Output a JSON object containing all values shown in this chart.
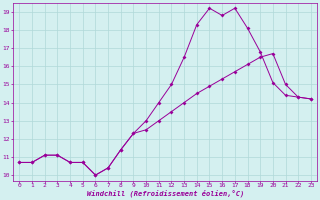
{
  "xlabel": "Windchill (Refroidissement éolien,°C)",
  "bg_color": "#d4f0f0",
  "grid_color": "#b0d8d8",
  "line_color": "#990099",
  "xlim": [
    -0.5,
    23.5
  ],
  "ylim": [
    9.7,
    19.5
  ],
  "yticks": [
    10,
    11,
    12,
    13,
    14,
    15,
    16,
    17,
    18,
    19
  ],
  "xticks": [
    0,
    1,
    2,
    3,
    4,
    5,
    6,
    7,
    8,
    9,
    10,
    11,
    12,
    13,
    14,
    15,
    16,
    17,
    18,
    19,
    20,
    21,
    22,
    23
  ],
  "line1_x": [
    0,
    1,
    2,
    3,
    4,
    5,
    6,
    7,
    8,
    9,
    10,
    11,
    12,
    13,
    14,
    15,
    16,
    17,
    18,
    19,
    20,
    21,
    22,
    23
  ],
  "line1_y": [
    10.7,
    10.7,
    11.1,
    11.1,
    10.7,
    10.7,
    10.0,
    10.4,
    11.4,
    12.3,
    12.5,
    13.0,
    13.5,
    14.0,
    14.5,
    14.9,
    15.3,
    15.7,
    16.1,
    16.5,
    16.7,
    15.0,
    14.3,
    14.2
  ],
  "line2_x": [
    0,
    1,
    2,
    3,
    4,
    5,
    6,
    7,
    8,
    9,
    10,
    11,
    12,
    13,
    14,
    15,
    16,
    17,
    18,
    19,
    20,
    21,
    22,
    23
  ],
  "line2_y": [
    10.7,
    10.7,
    11.1,
    11.1,
    10.7,
    10.7,
    10.0,
    10.4,
    11.4,
    12.3,
    13.0,
    14.0,
    15.0,
    16.5,
    18.3,
    19.2,
    18.8,
    19.2,
    18.1,
    16.8,
    15.1,
    14.4,
    14.3,
    14.2
  ]
}
